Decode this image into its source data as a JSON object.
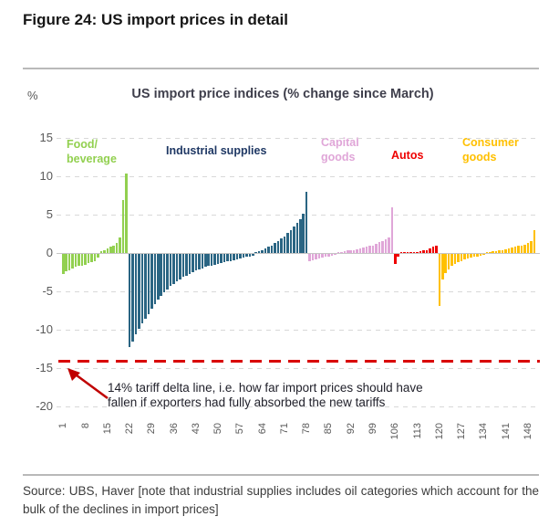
{
  "figure": {
    "title": "Figure 24: US import prices in detail",
    "source": "Source: UBS, Haver [note that industrial supplies includes oil categories which account for the bulk of the declines in import prices]"
  },
  "chart_data": {
    "type": "bar",
    "title": "US import price indices (% change since March)",
    "ylabel": "%",
    "ylim": [
      -20,
      15
    ],
    "grid": "horizontal-dashed",
    "yticks": [
      15,
      10,
      5,
      0,
      -5,
      -10,
      -15,
      -20
    ],
    "xticks": [
      1,
      8,
      15,
      22,
      29,
      36,
      43,
      50,
      57,
      64,
      71,
      78,
      85,
      92,
      99,
      106,
      113,
      120,
      127,
      134,
      141,
      148
    ],
    "annotation": {
      "text": "14% tariff delta line, i.e. how far import prices should have fallen if exporters had fully absorbed the new tariffs",
      "line_value": -14,
      "line_color": "#d90000"
    },
    "series": [
      {
        "name": "Food/ beverage",
        "color": "#92d050",
        "label_color": "#92d050",
        "values": [
          -2.6,
          -2.3,
          -2.1,
          -1.9,
          -1.7,
          -1.6,
          -1.5,
          -1.4,
          -1.2,
          -1.1,
          -0.9,
          -0.5,
          0.2,
          0.4,
          0.6,
          0.8,
          1.0,
          1.3,
          2.0,
          6.9,
          10.3
        ]
      },
      {
        "name": "Industrial supplies",
        "color": "#2a6583",
        "label_color": "#1f3864",
        "values": [
          -12.2,
          -11.4,
          -10.5,
          -9.8,
          -9.1,
          -8.4,
          -7.8,
          -7.2,
          -6.6,
          -6.0,
          -5.5,
          -5.0,
          -4.6,
          -4.2,
          -3.9,
          -3.6,
          -3.3,
          -3.0,
          -2.8,
          -2.6,
          -2.4,
          -2.2,
          -2.0,
          -1.9,
          -1.7,
          -1.6,
          -1.5,
          -1.4,
          -1.3,
          -1.2,
          -1.1,
          -1.0,
          -0.9,
          -0.8,
          -0.7,
          -0.6,
          -0.5,
          -0.4,
          -0.3,
          -0.2,
          0.1,
          0.2,
          0.4,
          0.6,
          0.8,
          1.0,
          1.3,
          1.6,
          1.9,
          2.2,
          2.6,
          3.0,
          3.4,
          3.9,
          4.4,
          5.1,
          8.0
        ]
      },
      {
        "name": "Capital goods",
        "color": "#e0a6d8",
        "label_color": "#e0a6d8",
        "values": [
          -0.9,
          -0.8,
          -0.7,
          -0.6,
          -0.5,
          -0.4,
          -0.3,
          -0.2,
          -0.1,
          0.1,
          0.15,
          0.2,
          0.3,
          0.35,
          0.4,
          0.5,
          0.6,
          0.7,
          0.8,
          0.9,
          1.0,
          1.2,
          1.4,
          1.6,
          1.8,
          2.0,
          6.0
        ]
      },
      {
        "name": "Autos",
        "color": "#ee0000",
        "label_color": "#ee0000",
        "values": [
          -1.3,
          -0.3,
          0.05,
          0.08,
          0.1,
          0.1,
          0.12,
          0.15,
          0.2,
          0.3,
          0.4,
          0.6,
          0.8,
          1.0
        ]
      },
      {
        "name": "Consumer goods",
        "color": "#ffc000",
        "label_color": "#ffc000",
        "values": [
          -6.8,
          -3.3,
          -2.5,
          -2.0,
          -1.6,
          -1.3,
          -1.1,
          -0.9,
          -0.7,
          -0.6,
          -0.5,
          -0.4,
          -0.3,
          -0.2,
          -0.1,
          0.1,
          0.15,
          0.2,
          0.25,
          0.3,
          0.4,
          0.5,
          0.6,
          0.7,
          0.8,
          0.9,
          1.0,
          1.1,
          1.3,
          1.6,
          3.0
        ]
      }
    ]
  }
}
